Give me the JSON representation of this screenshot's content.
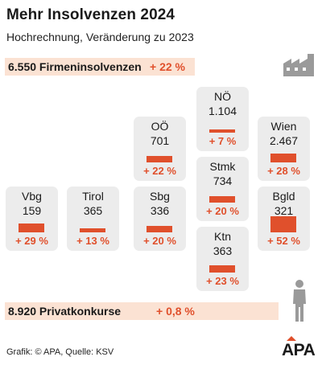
{
  "title": "Mehr Insolvenzen 2024",
  "subtitle": "Hochrechnung, Veränderung zu 2023",
  "summary": {
    "firms": {
      "label": "6.550 Firmeninsolvenzen",
      "change": "+ 22 %"
    },
    "private": {
      "label": "8.920 Privatkonkurse",
      "change": "+ 0,8 %"
    }
  },
  "footer": "Grafik: © APA, Quelle: KSV",
  "logo": "APA",
  "colors": {
    "accent": "#e0502c",
    "band": "#fbe2d3",
    "box": "#ececec",
    "icon": "#9a9a9a"
  },
  "icons": [
    "factory-icon",
    "person-icon"
  ],
  "chart_data": {
    "type": "bar",
    "title": "Mehr Insolvenzen 2024",
    "subtitle": "Hochrechnung, Veränderung zu 2023",
    "categories": [
      "Vbg",
      "Tirol",
      "Sbg",
      "OÖ",
      "NÖ",
      "Stmk",
      "Ktn",
      "Wien",
      "Bgld"
    ],
    "insolvencies": [
      159,
      365,
      336,
      701,
      1104,
      734,
      363,
      2467,
      321
    ],
    "insolvencies_labels": [
      "159",
      "365",
      "336",
      "701",
      "1.104",
      "734",
      "363",
      "2.467",
      "321"
    ],
    "change_pct": [
      29,
      13,
      20,
      22,
      7,
      20,
      23,
      28,
      52
    ],
    "change_labels": [
      "+ 29 %",
      "+ 13 %",
      "+ 20 %",
      "+ 22 %",
      "+ 7 %",
      "+ 20 %",
      "+ 23 %",
      "+ 28 %",
      "+ 52 %"
    ]
  }
}
